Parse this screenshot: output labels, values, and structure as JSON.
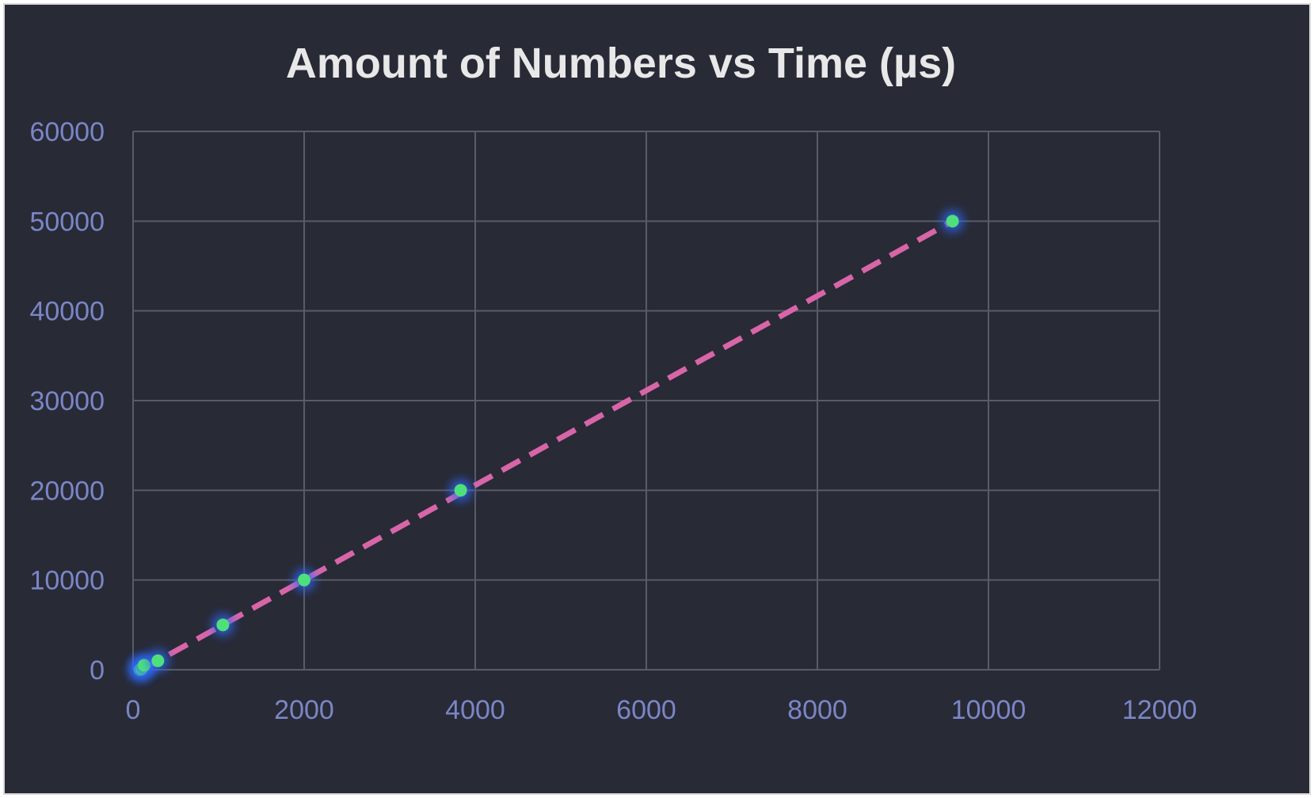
{
  "chart_data": {
    "type": "scatter",
    "title": "Amount of Numbers vs Time (µs)",
    "xlabel": "",
    "ylabel": "",
    "xlim": [
      0,
      12000
    ],
    "ylim": [
      0,
      60000
    ],
    "x_ticks": [
      "0",
      "2000",
      "4000",
      "6000",
      "8000",
      "10000",
      "12000"
    ],
    "y_ticks": [
      "0",
      "10000",
      "20000",
      "30000",
      "40000",
      "50000",
      "60000"
    ],
    "grid": true,
    "legend": "none",
    "points": [
      {
        "x": 80,
        "y": 10
      },
      {
        "x": 100,
        "y": 100
      },
      {
        "x": 130,
        "y": 500
      },
      {
        "x": 290,
        "y": 1000
      },
      {
        "x": 1050,
        "y": 5000
      },
      {
        "x": 2000,
        "y": 10000
      },
      {
        "x": 3830,
        "y": 20000
      },
      {
        "x": 9580,
        "y": 50000
      }
    ],
    "trendline": {
      "style": "dashed",
      "x": [
        100,
        9580
      ],
      "y": [
        0,
        50000
      ]
    },
    "colors": {
      "background": "#282a36",
      "points": "#4ee07a",
      "point_glow": "#2f6bff",
      "trendline": "#d865a8",
      "grid": "#595b66",
      "ticks": "#7b86c6",
      "title": "#e8e8e8"
    }
  }
}
